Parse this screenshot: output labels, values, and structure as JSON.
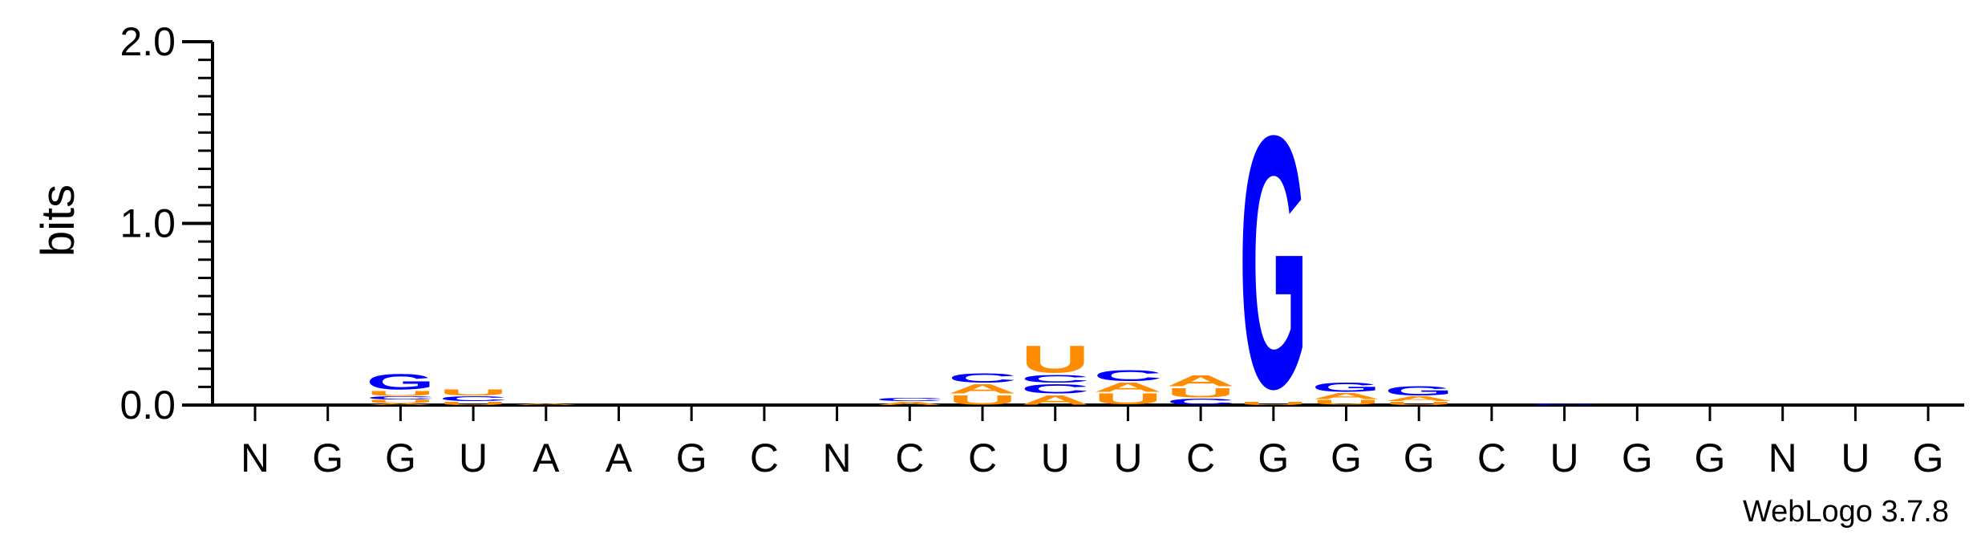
{
  "chart_data": {
    "type": "sequence-logo",
    "ylabel": "bits",
    "ylim": [
      0,
      2.0
    ],
    "yticks": [
      "0.0",
      "1.0",
      "2.0"
    ],
    "positions": [
      "N",
      "G",
      "G",
      "U",
      "A",
      "A",
      "G",
      "C",
      "N",
      "C",
      "C",
      "U",
      "U",
      "C",
      "G",
      "G",
      "G",
      "C",
      "U",
      "G",
      "G",
      "N",
      "U",
      "G"
    ],
    "colors": {
      "G": "#0000ff",
      "C": "#0000ff",
      "A": "#ff8c00",
      "U": "#ff8c00"
    },
    "columns": [
      [],
      [],
      [
        [
          "A",
          0.01
        ],
        [
          "U",
          0.02
        ],
        [
          "C",
          0.02
        ],
        [
          "U",
          0.03
        ],
        [
          "G",
          0.1
        ]
      ],
      [
        [
          "U",
          0.02
        ],
        [
          "C",
          0.03
        ],
        [
          "U",
          0.04
        ]
      ],
      [
        [
          "A",
          0.01
        ]
      ],
      [],
      [],
      [],
      [],
      [
        [
          "A",
          0.02
        ],
        [
          "C",
          0.02
        ]
      ],
      [
        [
          "U",
          0.06
        ],
        [
          "A",
          0.06
        ],
        [
          "C",
          0.06
        ]
      ],
      [
        [
          "A",
          0.06
        ],
        [
          "C",
          0.06
        ],
        [
          "C",
          0.05
        ],
        [
          "U",
          0.17
        ]
      ],
      [
        [
          "U",
          0.07
        ],
        [
          "A",
          0.06
        ],
        [
          "C",
          0.07
        ]
      ],
      [
        [
          "C",
          0.04
        ],
        [
          "U",
          0.06
        ],
        [
          "A",
          0.07
        ]
      ],
      [
        [
          "U",
          0.02
        ],
        [
          "G",
          1.6
        ]
      ],
      [
        [
          "U",
          0.03
        ],
        [
          "A",
          0.04
        ],
        [
          "G",
          0.06
        ]
      ],
      [
        [
          "U",
          0.02
        ],
        [
          "A",
          0.03
        ],
        [
          "G",
          0.06
        ]
      ],
      [],
      [
        [
          "C",
          0.01
        ]
      ],
      [],
      [],
      [],
      [],
      []
    ]
  },
  "credit": "WebLogo 3.7.8"
}
